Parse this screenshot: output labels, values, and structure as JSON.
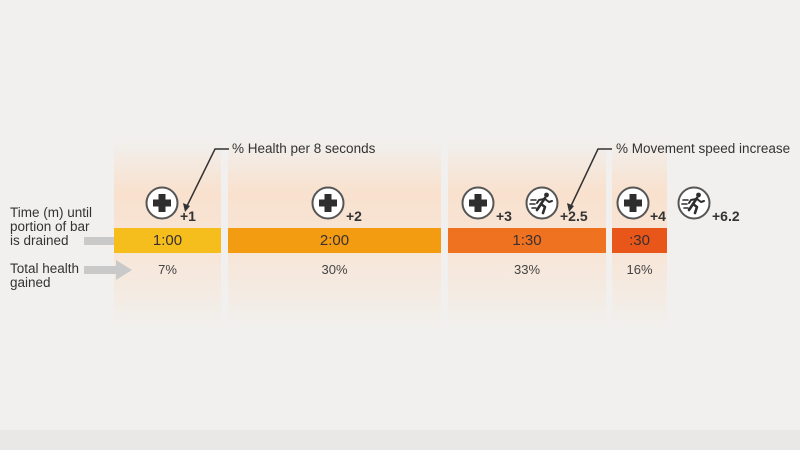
{
  "callouts": {
    "health": "% Health per 8 seconds",
    "movement": "% Movement speed increase"
  },
  "row_labels": {
    "time": [
      "Time (m) until",
      "portion of bar",
      "is drained"
    ],
    "total": [
      "Total health",
      "gained"
    ]
  },
  "stages": [
    {
      "time": "1:00",
      "total": "7%",
      "health_bonus": "+1",
      "speed_bonus": null,
      "color": "#f5be1c"
    },
    {
      "time": "2:00",
      "total": "30%",
      "health_bonus": "+2",
      "speed_bonus": null,
      "color": "#f39c12"
    },
    {
      "time": "1:30",
      "total": "33%",
      "health_bonus": "+3",
      "speed_bonus": "+2.5",
      "color": "#ee7220"
    },
    {
      "time": ":30",
      "total": "16%",
      "health_bonus": "+4",
      "speed_bonus": "+6.2",
      "color": "#e8561a"
    }
  ],
  "icons": {
    "health": "health-cross-icon",
    "speed": "running-person-icon"
  },
  "colors": {
    "background": "#f1f0ee",
    "arrow": "#c9c9c9",
    "icon_ring": "#555555"
  }
}
